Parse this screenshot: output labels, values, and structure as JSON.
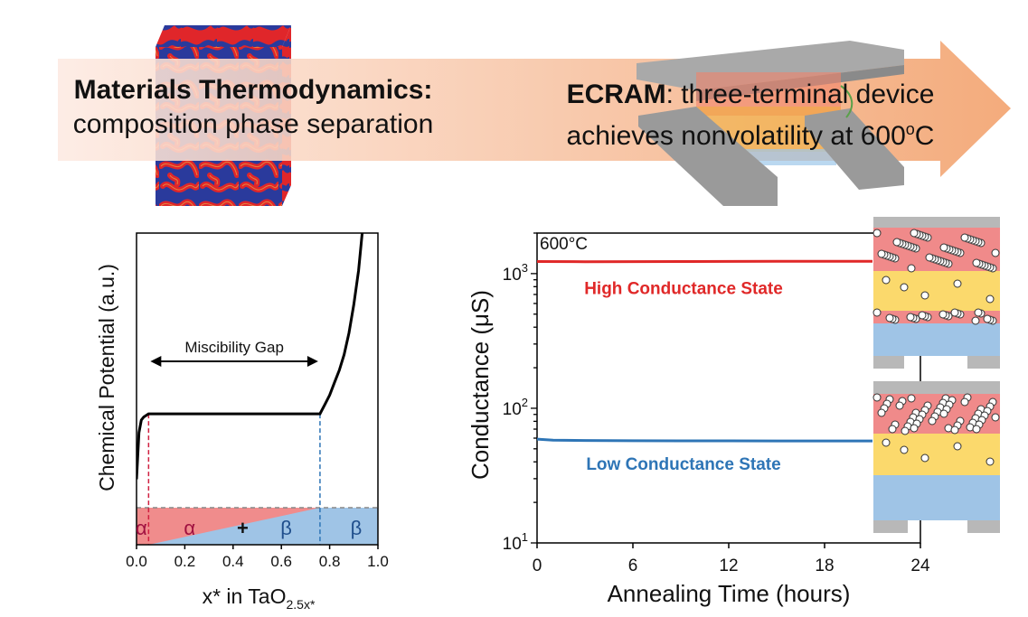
{
  "banner": {
    "left_bold": "Materials Thermodynamics:",
    "left_text": "composition phase separation",
    "right_bold": "ECRAM",
    "right_text_1": ": three-terminal device",
    "right_text_2": "achieves nonvolatility at 600",
    "right_sup": "o",
    "right_unit": "C",
    "colors": {
      "arrow_start": "#fde6dc",
      "arrow_end": "#f2a06a",
      "cube_red": "#e0262a",
      "cube_blue": "#2a3a9c",
      "cube_yellow": "#e8c34a"
    }
  },
  "chart_data": [
    {
      "type": "line",
      "ylabel": "Chemical Potential (a.u.)",
      "xlabel_main": "x* in TaO",
      "xlabel_sub": "2.5x*",
      "xlim": [
        0.0,
        1.0
      ],
      "xticks": [
        "0.0",
        "0.2",
        "0.4",
        "0.6",
        "0.8",
        "1.0"
      ],
      "annotation": "Miscibility Gap",
      "gap_bounds": [
        0.05,
        0.76
      ],
      "curve": {
        "x": [
          0.0,
          0.01,
          0.02,
          0.03,
          0.05,
          0.76,
          0.78,
          0.8,
          0.82,
          0.84,
          0.86,
          0.88,
          0.9,
          0.92,
          0.935
        ],
        "y": [
          0.21,
          0.36,
          0.4,
          0.41,
          0.42,
          0.42,
          0.45,
          0.48,
          0.52,
          0.56,
          0.61,
          0.68,
          0.77,
          0.88,
          1.0
        ]
      },
      "phase_labels": [
        "α",
        "α",
        "+",
        "β",
        "β"
      ],
      "colors": {
        "alpha": "#f08c8c",
        "beta": "#9fc4e6",
        "alpha_text": "#a01040",
        "beta_text": "#1f4e8c",
        "gap_alpha_line": "#d02040",
        "gap_beta_line": "#2e75b6"
      }
    },
    {
      "type": "line",
      "title": "600°C",
      "xlabel": "Annealing Time (hours)",
      "ylabel": "Conductance (μS)",
      "xlim": [
        0,
        24
      ],
      "xticks": [
        0,
        6,
        12,
        18,
        24
      ],
      "ylim": [
        10,
        2000
      ],
      "yscale": "log",
      "yticks": [
        {
          "value": 10,
          "exp": "1"
        },
        {
          "value": 100,
          "exp": "2"
        },
        {
          "value": 1000,
          "exp": "3"
        }
      ],
      "series": [
        {
          "name": "High Conductance State",
          "color": "#e02828",
          "x": [
            0,
            3,
            6,
            9,
            12,
            15,
            18,
            21
          ],
          "y": [
            1230,
            1225,
            1228,
            1230,
            1232,
            1233,
            1235,
            1236
          ]
        },
        {
          "name": "Low Conductance State",
          "color": "#2e75b6",
          "x": [
            0,
            1,
            3,
            6,
            9,
            12,
            15,
            18,
            21
          ],
          "y": [
            59,
            58,
            57.6,
            57.4,
            57.3,
            57.3,
            57.2,
            57.2,
            57.2
          ]
        }
      ]
    }
  ]
}
